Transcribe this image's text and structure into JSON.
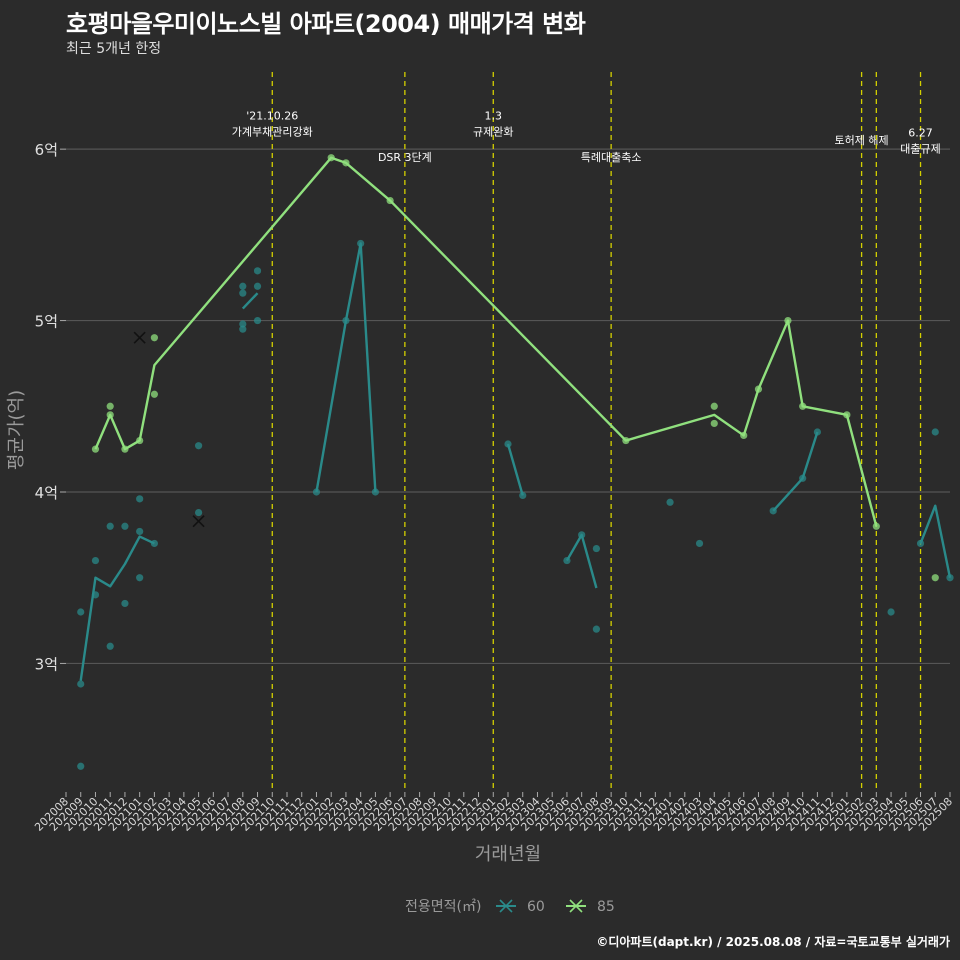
{
  "chart_data": {
    "type": "line",
    "title": "호평마을우미이노스빌 아파트(2004) 매매가격 변화",
    "subtitle": "최근 5개년 한정",
    "xlabel": "거래년월",
    "ylabel": "평균가(억)",
    "caption": "©디아파트(dapt.kr) / 2025.08.08 / 자료=국토교통부 실거래가",
    "legend_title": "전용면적(㎡)",
    "legend_position": "bottom",
    "ylim": [
      2.25,
      6.45
    ],
    "y_ticks": [
      3,
      4,
      5,
      6
    ],
    "y_tick_labels": [
      "3억",
      "4억",
      "5억",
      "6억"
    ],
    "x_ticks": [
      "202008",
      "202009",
      "202010",
      "202011",
      "202012",
      "202101",
      "202102",
      "202103",
      "202104",
      "202105",
      "202106",
      "202107",
      "202108",
      "202109",
      "202110",
      "202111",
      "202112",
      "202201",
      "202202",
      "202203",
      "202204",
      "202205",
      "202206",
      "202207",
      "202208",
      "202209",
      "202210",
      "202211",
      "202212",
      "202301",
      "202302",
      "202303",
      "202304",
      "202305",
      "202306",
      "202307",
      "202308",
      "202309",
      "202310",
      "202311",
      "202312",
      "202401",
      "202402",
      "202403",
      "202404",
      "202405",
      "202406",
      "202407",
      "202408",
      "202409",
      "202410",
      "202411",
      "202412",
      "202501",
      "202502",
      "202503",
      "202504",
      "202505",
      "202506",
      "202507",
      "202508"
    ],
    "events": [
      {
        "x": "202110",
        "label": "'21.10.26\n가계부채관리강화",
        "label_y": 6.08
      },
      {
        "x": "202207",
        "label": "DSR 3단계",
        "label_y": 5.93
      },
      {
        "x": "202301",
        "label": "1.3\n규제완화",
        "label_y": 6.08
      },
      {
        "x": "202309",
        "label": "특례대출축소",
        "label_y": 5.93
      },
      {
        "x": "202502",
        "label": "토허제 해제",
        "label_y": 6.03
      },
      {
        "x": "202503",
        "label": "",
        "label_y": 6.0
      },
      {
        "x": "202506",
        "label": "6.27\n대출규제",
        "label_y": 5.98
      }
    ],
    "series": [
      {
        "name": "60",
        "color": "#2a8a8a",
        "line": [
          [
            "202009",
            2.9
          ],
          [
            "202010",
            3.5
          ],
          [
            "202011",
            3.45
          ],
          [
            "202012",
            3.58
          ],
          [
            "202101",
            3.74
          ],
          [
            "202102",
            3.7
          ],
          null,
          [
            "202108",
            5.07
          ],
          [
            "202109",
            5.16
          ],
          null,
          [
            "202201",
            4.0
          ],
          [
            "202203",
            5.0
          ],
          [
            "202204",
            5.45
          ],
          [
            "202205",
            4.0
          ],
          null,
          [
            "202302",
            4.28
          ],
          [
            "202303",
            3.98
          ],
          null,
          [
            "202306",
            3.6
          ],
          [
            "202307",
            3.75
          ],
          [
            "202308",
            3.44
          ],
          null,
          [
            "202408",
            3.89
          ],
          [
            "202410",
            4.08
          ],
          [
            "202411",
            4.35
          ],
          null,
          [
            "202506",
            3.7
          ],
          [
            "202507",
            3.92
          ],
          [
            "202508",
            3.5
          ]
        ],
        "points": [
          [
            "202009",
            3.3
          ],
          [
            "202009",
            2.88
          ],
          [
            "202009",
            2.4
          ],
          [
            "202010",
            3.6
          ],
          [
            "202010",
            3.4
          ],
          [
            "202011",
            3.8
          ],
          [
            "202011",
            3.1
          ],
          [
            "202012",
            3.8
          ],
          [
            "202012",
            3.35
          ],
          [
            "202101",
            3.96
          ],
          [
            "202101",
            3.77
          ],
          [
            "202101",
            3.5
          ],
          [
            "202102",
            3.7
          ],
          [
            "202105",
            4.27
          ],
          [
            "202105",
            3.88
          ],
          [
            "202108",
            5.2
          ],
          [
            "202108",
            5.16
          ],
          [
            "202108",
            4.98
          ],
          [
            "202108",
            4.95
          ],
          [
            "202109",
            5.29
          ],
          [
            "202109",
            5.2
          ],
          [
            "202109",
            5.0
          ],
          [
            "202201",
            4.0
          ],
          [
            "202203",
            5.0
          ],
          [
            "202204",
            5.45
          ],
          [
            "202205",
            4.0
          ],
          [
            "202302",
            4.28
          ],
          [
            "202303",
            3.98
          ],
          [
            "202306",
            3.6
          ],
          [
            "202307",
            3.75
          ],
          [
            "202308",
            3.67
          ],
          [
            "202308",
            3.2
          ],
          [
            "202401",
            3.94
          ],
          [
            "202403",
            3.7
          ],
          [
            "202408",
            3.89
          ],
          [
            "202410",
            4.08
          ],
          [
            "202411",
            4.35
          ],
          [
            "202504",
            3.3
          ],
          [
            "202506",
            3.7
          ],
          [
            "202507",
            4.35
          ],
          [
            "202508",
            3.5
          ]
        ],
        "cross_points": [
          [
            "202105",
            3.83
          ]
        ]
      },
      {
        "name": "85",
        "color": "#90e07e",
        "line": [
          [
            "202010",
            4.25
          ],
          [
            "202011",
            4.45
          ],
          [
            "202012",
            4.25
          ],
          [
            "202101",
            4.3
          ],
          [
            "202102",
            4.74
          ],
          [
            "202202",
            5.95
          ],
          [
            "202203",
            5.92
          ],
          [
            "202206",
            5.7
          ],
          [
            "202310",
            4.3
          ],
          [
            "202404",
            4.45
          ],
          [
            "202406",
            4.33
          ],
          [
            "202407",
            4.6
          ],
          [
            "202409",
            5.0
          ],
          [
            "202410",
            4.5
          ],
          [
            "202501",
            4.45
          ],
          [
            "202503",
            3.8
          ]
        ],
        "points": [
          [
            "202010",
            4.25
          ],
          [
            "202011",
            4.5
          ],
          [
            "202011",
            4.45
          ],
          [
            "202012",
            4.25
          ],
          [
            "202101",
            4.3
          ],
          [
            "202102",
            4.9
          ],
          [
            "202102",
            4.57
          ],
          [
            "202202",
            5.95
          ],
          [
            "202203",
            5.92
          ],
          [
            "202206",
            5.7
          ],
          [
            "202310",
            4.3
          ],
          [
            "202404",
            4.5
          ],
          [
            "202404",
            4.4
          ],
          [
            "202406",
            4.33
          ],
          [
            "202407",
            4.6
          ],
          [
            "202409",
            5.0
          ],
          [
            "202410",
            4.5
          ],
          [
            "202501",
            4.45
          ],
          [
            "202503",
            3.8
          ],
          [
            "202507",
            3.5
          ]
        ],
        "cross_points": [
          [
            "202101",
            4.9
          ]
        ]
      }
    ]
  }
}
